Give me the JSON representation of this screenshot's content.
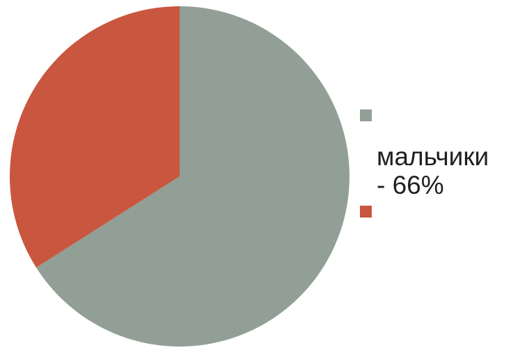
{
  "chart_data": {
    "type": "pie",
    "slices": [
      {
        "label": "мальчики\n- 66%",
        "value": 66,
        "color": "#929f96"
      },
      {
        "label": "",
        "value": 34,
        "color": "#c9563f"
      }
    ],
    "start_angle_deg": 0,
    "direction": "clockwise",
    "legend": "right"
  }
}
